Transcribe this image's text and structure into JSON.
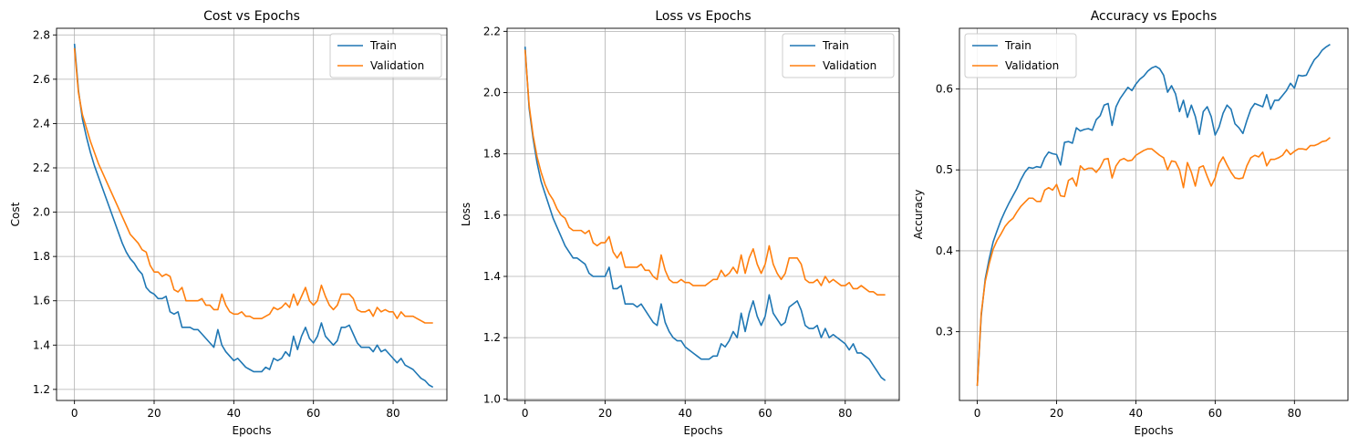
{
  "colors": {
    "train": "#1f77b4",
    "validation": "#ff7f0e",
    "grid": "#b0b0b0",
    "axis": "#000000"
  },
  "chart_data": [
    {
      "type": "line",
      "title": "Cost vs Epochs",
      "xlabel": "Epochs",
      "ylabel": "Cost",
      "xlim": [
        -4.5,
        93.5
      ],
      "ylim": [
        1.15,
        2.83
      ],
      "xticks": [
        0,
        20,
        40,
        60,
        80
      ],
      "yticks": [
        1.2,
        1.4,
        1.6,
        1.8,
        2.0,
        2.2,
        2.4,
        2.6,
        2.8
      ],
      "grid": true,
      "legend": "top-right",
      "series": [
        {
          "name": "Train",
          "values": [
            2.76,
            2.55,
            2.42,
            2.34,
            2.27,
            2.21,
            2.16,
            2.11,
            2.06,
            2.01,
            1.96,
            1.91,
            1.86,
            1.82,
            1.79,
            1.77,
            1.74,
            1.72,
            1.66,
            1.64,
            1.63,
            1.61,
            1.61,
            1.62,
            1.55,
            1.54,
            1.55,
            1.48,
            1.48,
            1.48,
            1.47,
            1.47,
            1.45,
            1.43,
            1.41,
            1.39,
            1.47,
            1.4,
            1.37,
            1.35,
            1.33,
            1.34,
            1.32,
            1.3,
            1.29,
            1.28,
            1.28,
            1.28,
            1.3,
            1.29,
            1.34,
            1.33,
            1.34,
            1.37,
            1.35,
            1.44,
            1.38,
            1.44,
            1.48,
            1.43,
            1.41,
            1.44,
            1.5,
            1.44,
            1.42,
            1.4,
            1.42,
            1.48,
            1.48,
            1.49,
            1.45,
            1.41,
            1.39,
            1.39,
            1.39,
            1.37,
            1.4,
            1.37,
            1.38,
            1.36,
            1.34,
            1.32,
            1.34,
            1.31,
            1.3,
            1.29,
            1.27,
            1.25,
            1.24,
            1.22,
            1.21
          ]
        },
        {
          "name": "Validation",
          "values": [
            2.74,
            2.54,
            2.44,
            2.38,
            2.32,
            2.27,
            2.22,
            2.18,
            2.14,
            2.1,
            2.06,
            2.02,
            1.98,
            1.94,
            1.9,
            1.88,
            1.86,
            1.83,
            1.82,
            1.76,
            1.73,
            1.73,
            1.71,
            1.72,
            1.71,
            1.65,
            1.64,
            1.66,
            1.6,
            1.6,
            1.6,
            1.6,
            1.61,
            1.58,
            1.58,
            1.56,
            1.56,
            1.63,
            1.58,
            1.55,
            1.54,
            1.54,
            1.55,
            1.53,
            1.53,
            1.52,
            1.52,
            1.52,
            1.53,
            1.54,
            1.57,
            1.56,
            1.57,
            1.59,
            1.57,
            1.63,
            1.58,
            1.62,
            1.66,
            1.6,
            1.58,
            1.6,
            1.67,
            1.62,
            1.58,
            1.56,
            1.58,
            1.63,
            1.63,
            1.63,
            1.61,
            1.56,
            1.55,
            1.55,
            1.56,
            1.53,
            1.57,
            1.55,
            1.56,
            1.55,
            1.55,
            1.52,
            1.55,
            1.53,
            1.53,
            1.53,
            1.52,
            1.51,
            1.5,
            1.5,
            1.5
          ]
        }
      ]
    },
    {
      "type": "line",
      "title": "Loss vs Epochs",
      "xlabel": "Epochs",
      "ylabel": "Loss",
      "xlim": [
        -4.5,
        93.5
      ],
      "ylim": [
        0.995,
        2.21
      ],
      "xticks": [
        0,
        20,
        40,
        60,
        80
      ],
      "yticks": [
        1.0,
        1.2,
        1.4,
        1.6,
        1.8,
        2.0,
        2.2
      ],
      "grid": true,
      "legend": "top-right",
      "series": [
        {
          "name": "Train",
          "values": [
            2.15,
            1.95,
            1.85,
            1.77,
            1.71,
            1.67,
            1.63,
            1.59,
            1.56,
            1.53,
            1.5,
            1.48,
            1.46,
            1.46,
            1.45,
            1.44,
            1.41,
            1.4,
            1.4,
            1.4,
            1.4,
            1.43,
            1.36,
            1.36,
            1.37,
            1.31,
            1.31,
            1.31,
            1.3,
            1.31,
            1.29,
            1.27,
            1.25,
            1.24,
            1.31,
            1.25,
            1.22,
            1.2,
            1.19,
            1.19,
            1.17,
            1.16,
            1.15,
            1.14,
            1.13,
            1.13,
            1.13,
            1.14,
            1.14,
            1.18,
            1.17,
            1.19,
            1.22,
            1.2,
            1.28,
            1.22,
            1.28,
            1.32,
            1.27,
            1.24,
            1.27,
            1.34,
            1.28,
            1.26,
            1.24,
            1.25,
            1.3,
            1.31,
            1.32,
            1.29,
            1.24,
            1.23,
            1.23,
            1.24,
            1.2,
            1.23,
            1.2,
            1.21,
            1.2,
            1.19,
            1.18,
            1.16,
            1.18,
            1.15,
            1.15,
            1.14,
            1.13,
            1.11,
            1.09,
            1.07,
            1.06
          ]
        },
        {
          "name": "Validation",
          "values": [
            2.14,
            1.96,
            1.86,
            1.79,
            1.74,
            1.7,
            1.67,
            1.65,
            1.62,
            1.6,
            1.59,
            1.56,
            1.55,
            1.55,
            1.55,
            1.54,
            1.55,
            1.51,
            1.5,
            1.51,
            1.51,
            1.53,
            1.48,
            1.46,
            1.48,
            1.43,
            1.43,
            1.43,
            1.43,
            1.44,
            1.42,
            1.42,
            1.4,
            1.39,
            1.47,
            1.42,
            1.39,
            1.38,
            1.38,
            1.39,
            1.38,
            1.38,
            1.37,
            1.37,
            1.37,
            1.37,
            1.38,
            1.39,
            1.39,
            1.42,
            1.4,
            1.41,
            1.43,
            1.41,
            1.47,
            1.41,
            1.46,
            1.49,
            1.44,
            1.41,
            1.44,
            1.5,
            1.44,
            1.41,
            1.39,
            1.41,
            1.46,
            1.46,
            1.46,
            1.44,
            1.39,
            1.38,
            1.38,
            1.39,
            1.37,
            1.4,
            1.38,
            1.39,
            1.38,
            1.37,
            1.37,
            1.38,
            1.36,
            1.36,
            1.37,
            1.36,
            1.35,
            1.35,
            1.34,
            1.34,
            1.34
          ]
        }
      ]
    },
    {
      "type": "line",
      "title": "Accuracy vs Epochs",
      "xlabel": "Epochs",
      "ylabel": "Accuracy",
      "xlim": [
        -4.5,
        93.5
      ],
      "ylim": [
        0.215,
        0.675
      ],
      "xticks": [
        0,
        20,
        40,
        60,
        80
      ],
      "yticks": [
        0.3,
        0.4,
        0.5,
        0.6
      ],
      "grid": true,
      "legend": "top-left",
      "series": [
        {
          "name": "Train",
          "values": [
            0.233,
            0.32,
            0.365,
            0.39,
            0.411,
            0.425,
            0.438,
            0.449,
            0.459,
            0.468,
            0.477,
            0.488,
            0.497,
            0.503,
            0.502,
            0.504,
            0.503,
            0.515,
            0.522,
            0.52,
            0.519,
            0.506,
            0.534,
            0.535,
            0.533,
            0.552,
            0.548,
            0.55,
            0.551,
            0.549,
            0.562,
            0.567,
            0.58,
            0.582,
            0.555,
            0.578,
            0.588,
            0.595,
            0.602,
            0.598,
            0.606,
            0.612,
            0.616,
            0.622,
            0.626,
            0.628,
            0.625,
            0.617,
            0.596,
            0.604,
            0.594,
            0.572,
            0.586,
            0.565,
            0.58,
            0.566,
            0.544,
            0.572,
            0.578,
            0.566,
            0.543,
            0.553,
            0.57,
            0.58,
            0.575,
            0.557,
            0.552,
            0.545,
            0.561,
            0.575,
            0.582,
            0.58,
            0.578,
            0.593,
            0.575,
            0.586,
            0.586,
            0.592,
            0.598,
            0.607,
            0.601,
            0.617,
            0.616,
            0.617,
            0.627,
            0.636,
            0.641,
            0.648,
            0.652,
            0.655
          ]
        },
        {
          "name": "Validation",
          "values": [
            0.233,
            0.323,
            0.362,
            0.384,
            0.402,
            0.413,
            0.421,
            0.43,
            0.436,
            0.44,
            0.448,
            0.455,
            0.46,
            0.465,
            0.465,
            0.461,
            0.461,
            0.475,
            0.478,
            0.475,
            0.482,
            0.468,
            0.467,
            0.487,
            0.49,
            0.48,
            0.505,
            0.5,
            0.502,
            0.502,
            0.497,
            0.503,
            0.513,
            0.514,
            0.49,
            0.505,
            0.512,
            0.514,
            0.511,
            0.512,
            0.518,
            0.521,
            0.524,
            0.526,
            0.526,
            0.522,
            0.518,
            0.515,
            0.5,
            0.511,
            0.51,
            0.5,
            0.478,
            0.509,
            0.497,
            0.48,
            0.503,
            0.505,
            0.492,
            0.48,
            0.49,
            0.508,
            0.516,
            0.506,
            0.497,
            0.49,
            0.489,
            0.49,
            0.505,
            0.515,
            0.518,
            0.516,
            0.522,
            0.505,
            0.513,
            0.513,
            0.515,
            0.518,
            0.525,
            0.519,
            0.523,
            0.526,
            0.526,
            0.525,
            0.53,
            0.53,
            0.532,
            0.535,
            0.536,
            0.54
          ]
        }
      ]
    }
  ]
}
